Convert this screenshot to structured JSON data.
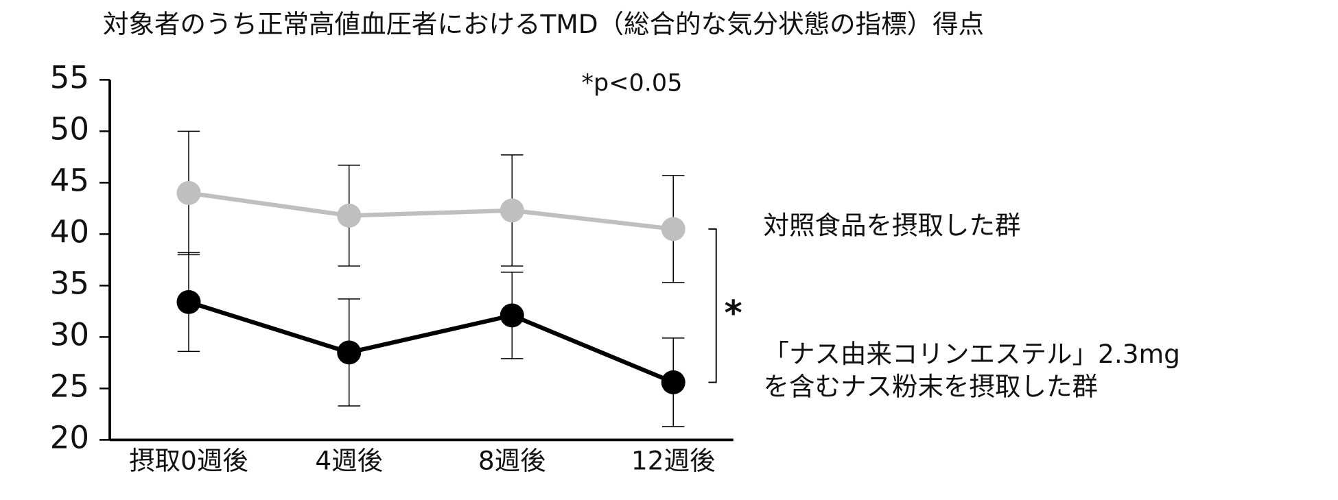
{
  "chart_data": {
    "type": "line",
    "title": "対象者のうち正常高値血圧者におけるTMD（総合的な気分状態の指標）得点",
    "annotation": "*p<0.05",
    "significance": "*",
    "categories": [
      "摂取0週後",
      "4週後",
      "8週後",
      "12週後"
    ],
    "series": [
      {
        "name": "対照食品を摂取した群",
        "color": "#bfbfbf",
        "values": [
          44.0,
          41.8,
          42.3,
          40.5
        ],
        "error": [
          6.0,
          4.9,
          5.4,
          5.2
        ]
      },
      {
        "name": "「ナス由来コリンエステル」2.3mg\nを含むナス粉末を摂取した群",
        "color": "#000000",
        "values": [
          33.4,
          28.5,
          32.1,
          25.6
        ],
        "error": [
          4.8,
          5.2,
          4.2,
          4.3
        ]
      }
    ],
    "ylim": [
      20,
      55
    ],
    "yticks": [
      20,
      25,
      30,
      35,
      40,
      45,
      50,
      55
    ],
    "grid": false
  }
}
